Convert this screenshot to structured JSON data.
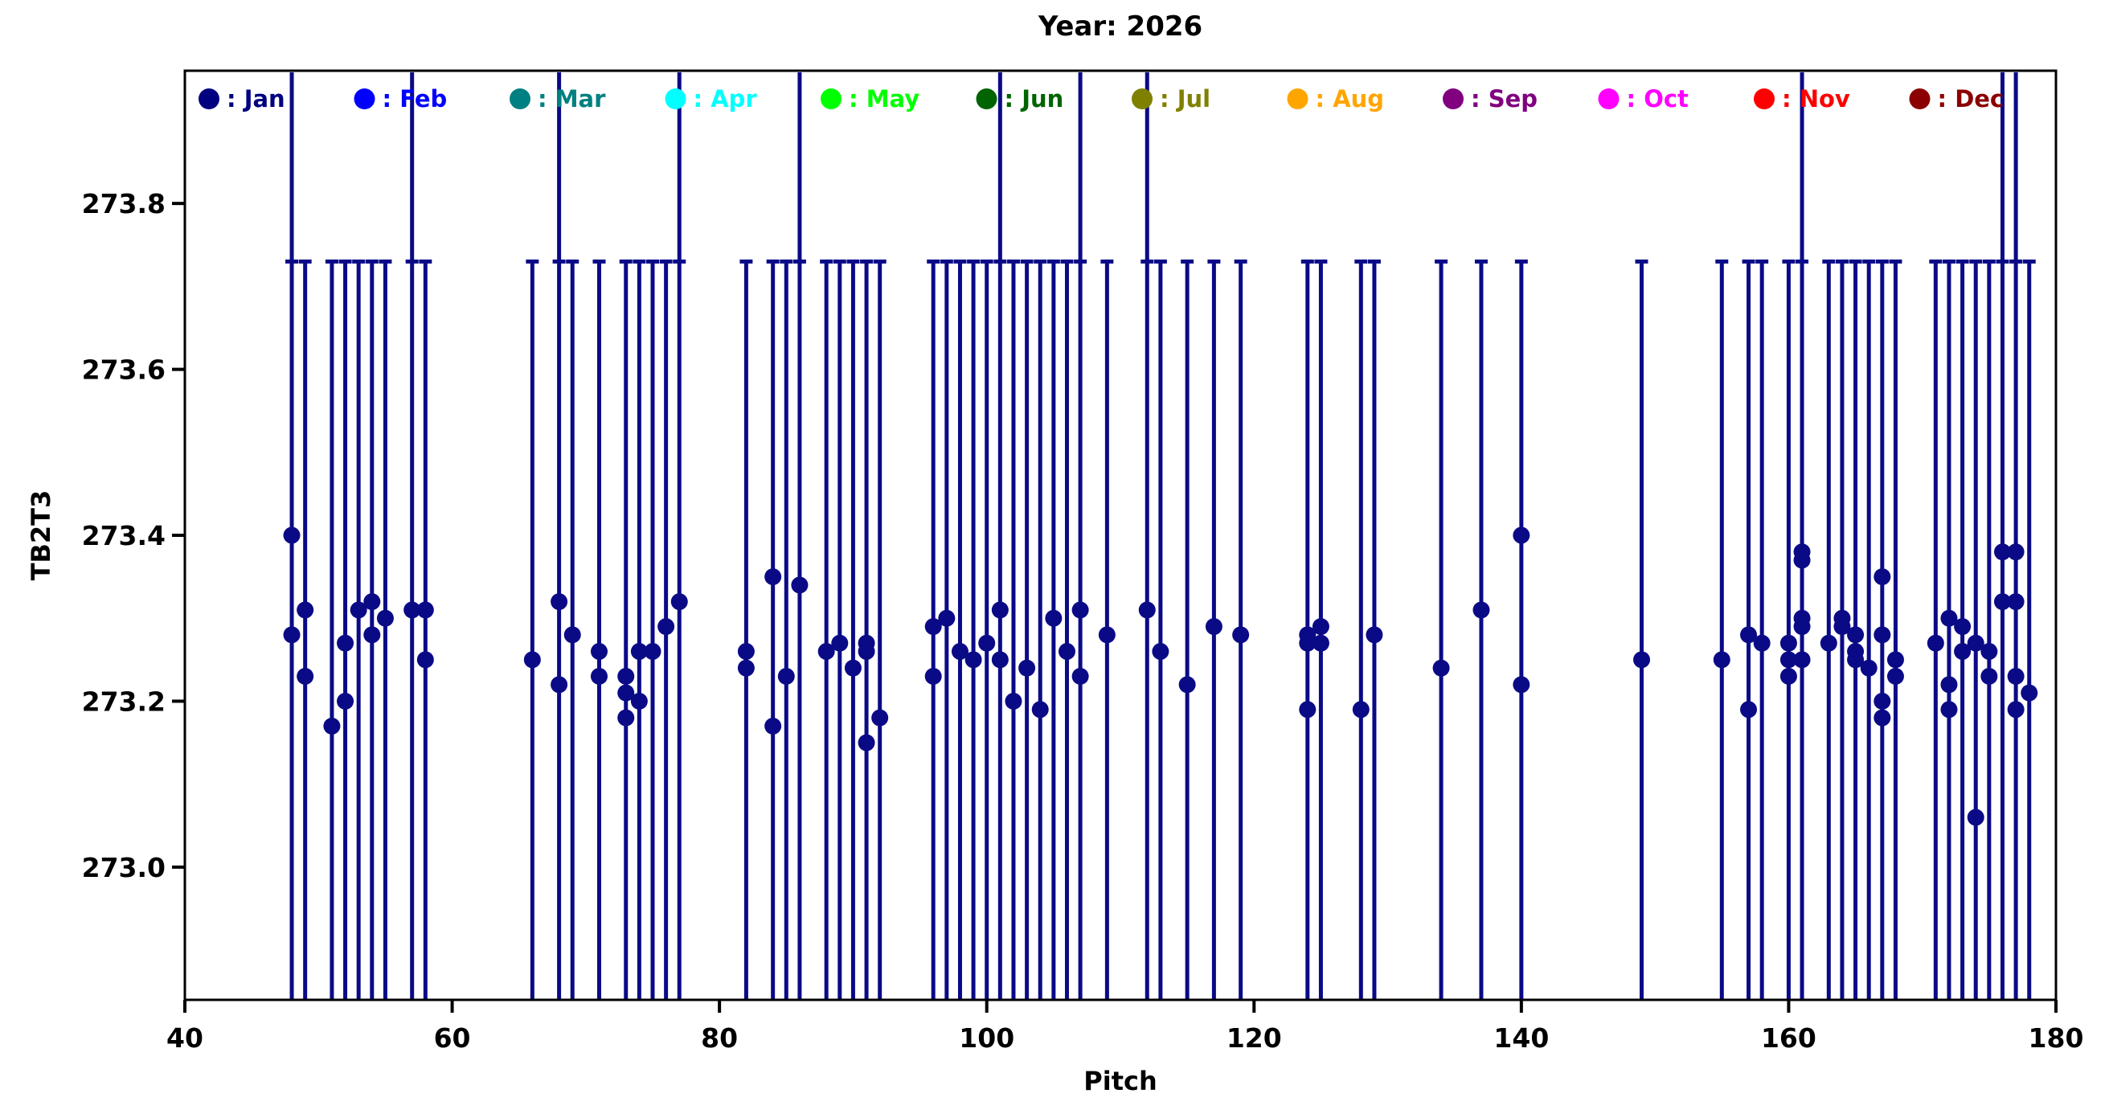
{
  "figure": {
    "title": "Year: 2026",
    "xlabel": "Pitch",
    "ylabel": "TB2T3"
  },
  "chart_data": {
    "type": "scatter",
    "title": "Year: 2026",
    "xlabel": "Pitch",
    "ylabel": "TB2T3",
    "xlim": [
      40,
      180
    ],
    "ylim": [
      272.84,
      273.96
    ],
    "xticks": [
      40,
      60,
      80,
      100,
      120,
      140,
      160,
      180
    ],
    "yticks": [
      273.0,
      273.2,
      273.4,
      273.6,
      273.8
    ],
    "grid": false,
    "legend_position": "top-inside",
    "marker_color": "#0a0a87",
    "axis_color": "#000000",
    "errorbar": {
      "color": "#0a0a87",
      "cap_top_value": 273.73,
      "lower_end": "clipped below axis",
      "tall_bars_upper_end": "clipped above axis"
    },
    "tall_error_pitches": [
      48,
      57,
      68,
      77,
      86,
      101,
      107,
      112,
      161,
      176,
      177
    ],
    "legend": [
      {
        "label": "Jan",
        "color": "#000080"
      },
      {
        "label": "Feb",
        "color": "#0000ff"
      },
      {
        "label": "Mar",
        "color": "#008080"
      },
      {
        "label": "Apr",
        "color": "#00ffff"
      },
      {
        "label": "May",
        "color": "#00ff00"
      },
      {
        "label": "Jun",
        "color": "#006400"
      },
      {
        "label": "Jul",
        "color": "#808000"
      },
      {
        "label": "Aug",
        "color": "#ffa500"
      },
      {
        "label": "Sep",
        "color": "#800080"
      },
      {
        "label": "Oct",
        "color": "#ff00ff"
      },
      {
        "label": "Nov",
        "color": "#ff0000"
      },
      {
        "label": "Dec",
        "color": "#8b0000"
      }
    ],
    "points": [
      [
        48,
        273.4
      ],
      [
        48,
        273.28
      ],
      [
        49,
        273.31
      ],
      [
        49,
        273.23
      ],
      [
        51,
        273.17
      ],
      [
        52,
        273.27
      ],
      [
        52,
        273.2
      ],
      [
        53,
        273.31
      ],
      [
        54,
        273.32
      ],
      [
        54,
        273.28
      ],
      [
        55,
        273.3
      ],
      [
        57,
        273.31
      ],
      [
        58,
        273.31
      ],
      [
        58,
        273.25
      ],
      [
        66,
        273.25
      ],
      [
        68,
        273.32
      ],
      [
        68,
        273.22
      ],
      [
        69,
        273.28
      ],
      [
        71,
        273.26
      ],
      [
        71,
        273.23
      ],
      [
        73,
        273.23
      ],
      [
        73,
        273.21
      ],
      [
        73,
        273.18
      ],
      [
        74,
        273.26
      ],
      [
        74,
        273.2
      ],
      [
        75,
        273.26
      ],
      [
        76,
        273.29
      ],
      [
        77,
        273.32
      ],
      [
        82,
        273.26
      ],
      [
        82,
        273.24
      ],
      [
        84,
        273.35
      ],
      [
        84,
        273.17
      ],
      [
        85,
        273.23
      ],
      [
        86,
        273.34
      ],
      [
        88,
        273.26
      ],
      [
        89,
        273.27
      ],
      [
        90,
        273.24
      ],
      [
        91,
        273.27
      ],
      [
        91,
        273.26
      ],
      [
        91,
        273.15
      ],
      [
        92,
        273.18
      ],
      [
        96,
        273.29
      ],
      [
        96,
        273.23
      ],
      [
        97,
        273.3
      ],
      [
        98,
        273.26
      ],
      [
        99,
        273.25
      ],
      [
        100,
        273.27
      ],
      [
        101,
        273.31
      ],
      [
        101,
        273.25
      ],
      [
        102,
        273.2
      ],
      [
        103,
        273.24
      ],
      [
        104,
        273.19
      ],
      [
        105,
        273.3
      ],
      [
        106,
        273.26
      ],
      [
        107,
        273.31
      ],
      [
        107,
        273.23
      ],
      [
        109,
        273.28
      ],
      [
        112,
        273.31
      ],
      [
        113,
        273.26
      ],
      [
        115,
        273.22
      ],
      [
        117,
        273.29
      ],
      [
        119,
        273.28
      ],
      [
        124,
        273.28
      ],
      [
        124,
        273.27
      ],
      [
        124,
        273.19
      ],
      [
        125,
        273.29
      ],
      [
        125,
        273.27
      ],
      [
        128,
        273.19
      ],
      [
        129,
        273.28
      ],
      [
        134,
        273.24
      ],
      [
        137,
        273.31
      ],
      [
        140,
        273.4
      ],
      [
        140,
        273.22
      ],
      [
        149,
        273.25
      ],
      [
        155,
        273.25
      ],
      [
        157,
        273.28
      ],
      [
        157,
        273.19
      ],
      [
        158,
        273.27
      ],
      [
        160,
        273.27
      ],
      [
        160,
        273.25
      ],
      [
        160,
        273.23
      ],
      [
        161,
        273.38
      ],
      [
        161,
        273.37
      ],
      [
        161,
        273.3
      ],
      [
        161,
        273.29
      ],
      [
        161,
        273.25
      ],
      [
        163,
        273.27
      ],
      [
        164,
        273.3
      ],
      [
        164,
        273.29
      ],
      [
        165,
        273.28
      ],
      [
        165,
        273.26
      ],
      [
        165,
        273.25
      ],
      [
        166,
        273.24
      ],
      [
        167,
        273.35
      ],
      [
        167,
        273.28
      ],
      [
        167,
        273.2
      ],
      [
        167,
        273.18
      ],
      [
        168,
        273.25
      ],
      [
        168,
        273.23
      ],
      [
        171,
        273.27
      ],
      [
        172,
        273.3
      ],
      [
        172,
        273.22
      ],
      [
        172,
        273.19
      ],
      [
        173,
        273.29
      ],
      [
        173,
        273.26
      ],
      [
        174,
        273.27
      ],
      [
        174,
        273.06
      ],
      [
        175,
        273.26
      ],
      [
        175,
        273.23
      ],
      [
        176,
        273.38
      ],
      [
        176,
        273.32
      ],
      [
        177,
        273.38
      ],
      [
        177,
        273.32
      ],
      [
        177,
        273.23
      ],
      [
        177,
        273.19
      ],
      [
        178,
        273.21
      ]
    ]
  }
}
